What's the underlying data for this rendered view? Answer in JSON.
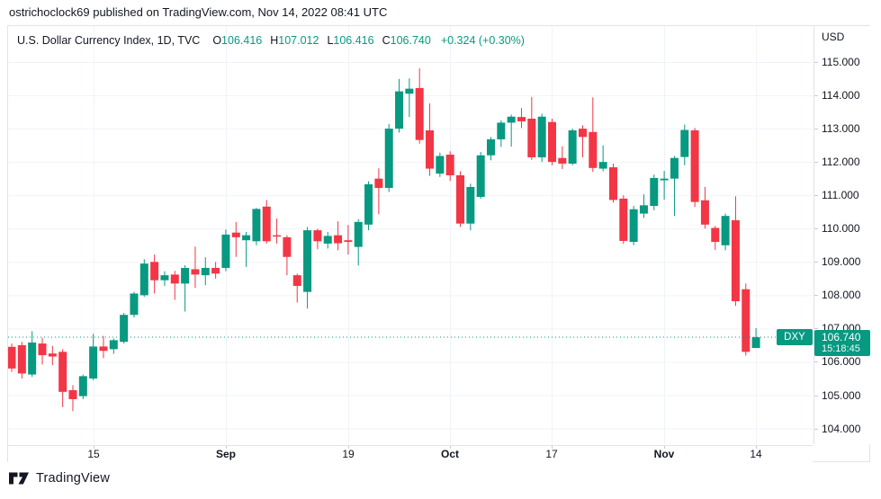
{
  "attribution": "ostrichoclock69 published on TradingView.com, Nov 14, 2022 08:41 UTC",
  "brand": {
    "name": "TradingView"
  },
  "legend": {
    "title": "U.S. Dollar Currency Index, 1D, TVC",
    "ohlc": [
      {
        "label": "O",
        "value": "106.416"
      },
      {
        "label": "H",
        "value": "107.012"
      },
      {
        "label": "L",
        "value": "106.416"
      },
      {
        "label": "C",
        "value": "106.740"
      }
    ],
    "change": "+0.324 (+0.30%)"
  },
  "price_axis": {
    "currency_label": "USD",
    "tick_labels": [
      "115.000",
      "114.000",
      "113.000",
      "112.000",
      "111.000",
      "110.000",
      "109.000",
      "108.000",
      "107.000",
      "106.000",
      "105.000",
      "104.000"
    ],
    "badge": {
      "symbol": "DXY",
      "price": "106.740",
      "countdown": "15:18:45"
    }
  },
  "time_axis": {
    "ticks": [
      {
        "label": "15",
        "candle_index": 8,
        "emphasis": false
      },
      {
        "label": "Sep",
        "candle_index": 21,
        "emphasis": true
      },
      {
        "label": "19",
        "candle_index": 33,
        "emphasis": false
      },
      {
        "label": "Oct",
        "candle_index": 43,
        "emphasis": true
      },
      {
        "label": "17",
        "candle_index": 53,
        "emphasis": false
      },
      {
        "label": "Nov",
        "candle_index": 64,
        "emphasis": true
      },
      {
        "label": "14",
        "candle_index": 73,
        "emphasis": false
      }
    ]
  },
  "colors": {
    "up": "#089981",
    "down": "#f23645",
    "grid": "#f0f3fa",
    "border": "#e0e3eb",
    "text": "#131722",
    "badge_bg": "#089981",
    "last_price_line": "#089981"
  },
  "chart_data": {
    "type": "candlestick",
    "title": "U.S. Dollar Currency Index",
    "symbol": "DXY",
    "timeframe": "1D",
    "exchange": "TVC",
    "unit": "USD",
    "last": {
      "open": 106.416,
      "high": 107.012,
      "low": 106.416,
      "close": 106.74,
      "change": "+0.324 (+0.30%)"
    },
    "last_price": 106.74,
    "y_axis": {
      "min": 104,
      "max": 115,
      "step": 1,
      "visible_range": [
        103.5,
        116.1
      ]
    },
    "x_tick_labels": [
      "15",
      "Sep",
      "19",
      "Oct",
      "17",
      "Nov",
      "14"
    ],
    "candles": [
      [
        106.45,
        106.55,
        105.7,
        105.8
      ],
      [
        106.5,
        106.6,
        105.5,
        105.65
      ],
      [
        105.62,
        106.92,
        105.55,
        106.58
      ],
      [
        106.55,
        106.72,
        105.92,
        106.2
      ],
      [
        106.25,
        106.48,
        105.9,
        106.16
      ],
      [
        106.3,
        106.38,
        104.64,
        105.1
      ],
      [
        105.15,
        105.3,
        104.52,
        104.88
      ],
      [
        104.97,
        105.62,
        104.88,
        105.57
      ],
      [
        105.5,
        106.84,
        105.45,
        106.46
      ],
      [
        106.46,
        106.78,
        106.11,
        106.33
      ],
      [
        106.38,
        106.7,
        106.24,
        106.65
      ],
      [
        106.6,
        107.47,
        106.55,
        107.41
      ],
      [
        107.41,
        108.1,
        107.33,
        108.05
      ],
      [
        108.0,
        109.08,
        107.95,
        108.95
      ],
      [
        109.0,
        109.22,
        108.05,
        108.45
      ],
      [
        108.45,
        108.72,
        108.28,
        108.6
      ],
      [
        108.62,
        108.73,
        107.86,
        108.35
      ],
      [
        108.35,
        108.9,
        107.51,
        108.82
      ],
      [
        108.78,
        109.46,
        108.22,
        108.62
      ],
      [
        108.6,
        109.14,
        108.3,
        108.82
      ],
      [
        108.82,
        109.0,
        108.5,
        108.65
      ],
      [
        108.82,
        109.97,
        108.72,
        109.82
      ],
      [
        109.88,
        110.2,
        109.15,
        109.74
      ],
      [
        109.65,
        109.9,
        108.85,
        109.8
      ],
      [
        109.62,
        110.62,
        109.5,
        110.59
      ],
      [
        110.66,
        110.86,
        109.55,
        109.62
      ],
      [
        109.8,
        110.3,
        109.55,
        109.77
      ],
      [
        109.74,
        109.8,
        108.6,
        109.15
      ],
      [
        108.6,
        108.65,
        107.78,
        108.28
      ],
      [
        108.1,
        110.05,
        107.6,
        109.95
      ],
      [
        109.95,
        110.0,
        109.38,
        109.62
      ],
      [
        109.55,
        109.9,
        109.4,
        109.78
      ],
      [
        109.8,
        110.22,
        109.35,
        109.56
      ],
      [
        109.65,
        110.11,
        109.22,
        109.6
      ],
      [
        109.45,
        110.28,
        108.89,
        110.2
      ],
      [
        110.12,
        111.42,
        109.95,
        111.33
      ],
      [
        111.5,
        111.81,
        110.43,
        111.22
      ],
      [
        111.22,
        113.14,
        111.1,
        113.0
      ],
      [
        113.0,
        114.49,
        112.88,
        114.12
      ],
      [
        114.05,
        114.51,
        113.35,
        114.2
      ],
      [
        114.22,
        114.81,
        112.55,
        112.66
      ],
      [
        112.95,
        113.76,
        111.58,
        111.8
      ],
      [
        111.65,
        112.28,
        111.55,
        112.18
      ],
      [
        112.22,
        112.32,
        111.43,
        111.6
      ],
      [
        111.6,
        111.72,
        110.05,
        110.15
      ],
      [
        110.15,
        111.35,
        109.95,
        111.25
      ],
      [
        110.95,
        112.3,
        110.9,
        112.2
      ],
      [
        112.2,
        112.75,
        112.05,
        112.68
      ],
      [
        112.68,
        113.25,
        112.45,
        113.18
      ],
      [
        113.18,
        113.42,
        112.46,
        113.36
      ],
      [
        113.35,
        113.62,
        113.02,
        113.22
      ],
      [
        113.3,
        113.95,
        112.06,
        112.14
      ],
      [
        112.14,
        113.45,
        112.0,
        113.36
      ],
      [
        113.2,
        113.3,
        111.9,
        112.0
      ],
      [
        112.12,
        112.47,
        111.79,
        111.95
      ],
      [
        111.95,
        113.0,
        111.9,
        112.95
      ],
      [
        113.0,
        113.1,
        112.14,
        112.75
      ],
      [
        112.9,
        113.94,
        111.7,
        111.82
      ],
      [
        111.8,
        112.5,
        111.72,
        112.0
      ],
      [
        111.84,
        111.95,
        110.78,
        110.86
      ],
      [
        110.9,
        111.0,
        109.54,
        109.63
      ],
      [
        109.6,
        110.68,
        109.5,
        110.58
      ],
      [
        110.45,
        111.03,
        110.32,
        110.7
      ],
      [
        110.68,
        111.62,
        110.55,
        111.52
      ],
      [
        111.45,
        111.73,
        110.87,
        111.5
      ],
      [
        111.5,
        112.18,
        110.38,
        112.12
      ],
      [
        112.15,
        113.12,
        111.9,
        112.96
      ],
      [
        112.95,
        113.02,
        110.65,
        110.8
      ],
      [
        110.85,
        111.25,
        110.0,
        110.12
      ],
      [
        110.02,
        110.08,
        109.36,
        109.6
      ],
      [
        109.5,
        110.45,
        109.35,
        110.38
      ],
      [
        110.25,
        110.97,
        107.68,
        107.82
      ],
      [
        108.18,
        108.35,
        106.19,
        106.3
      ],
      [
        106.416,
        107.012,
        106.416,
        106.74
      ]
    ]
  }
}
